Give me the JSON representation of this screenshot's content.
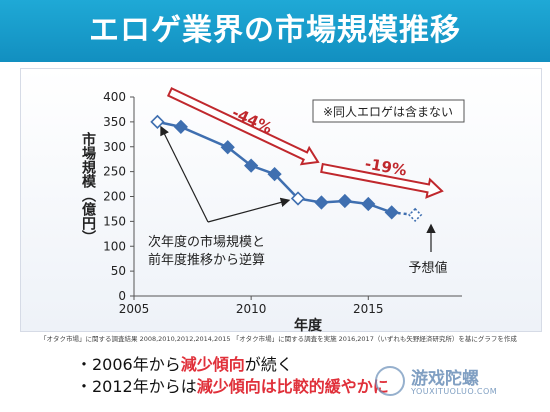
{
  "title": "エロゲ業界の市場規模推移",
  "chart_data": {
    "type": "line",
    "xlabel": "年度",
    "ylabel": "市場規模（億円）",
    "xlim": [
      2005,
      2019
    ],
    "ylim": [
      0,
      400
    ],
    "x_ticks": [
      2005,
      2010,
      2015
    ],
    "y_ticks": [
      0,
      50,
      100,
      150,
      200,
      250,
      300,
      350,
      400
    ],
    "series": [
      {
        "values_points": [
          [
            2006,
            350
          ],
          [
            2007,
            340
          ],
          [
            2009,
            299
          ],
          [
            2010,
            262
          ],
          [
            2011,
            245
          ],
          [
            2012,
            196
          ],
          [
            2013,
            188
          ],
          [
            2014,
            191
          ],
          [
            2015,
            185
          ],
          [
            2016,
            168
          ],
          [
            2017,
            163
          ]
        ]
      }
    ],
    "back_calculated_points": [
      2006,
      2012
    ],
    "forecast_point": 2017,
    "annotations": {
      "excludes_note": "※同人エロゲは含まない",
      "drop1": "-44%",
      "drop2": "-19%",
      "back_calc_note_line1": "次年度の市場規模と",
      "back_calc_note_line2": "前年度推移から逆算",
      "forecast_label": "予想値"
    }
  },
  "source_note": "「オタク市場」に関する調査結果 2008,2010,2012,2014,2015 「オタク市場」に関する調査を実施 2016,2017（いずれも矢野経済研究所）を基にグラフを作成",
  "bullets": [
    {
      "prefix": "・2006年から",
      "emphasis": "減少傾向",
      "suffix": "が続く"
    },
    {
      "prefix": "・2012年からは",
      "emphasis": "減少傾向は比較的緩やかに",
      "suffix": ""
    }
  ],
  "watermark": {
    "name": "游戏陀螺",
    "url": "YOUXITUOLUO.COM"
  },
  "colors": {
    "banner": "#1a9fd0",
    "line": "#3f6fb0",
    "arrow": "#c0282d",
    "emphasis": "#e0303a"
  }
}
